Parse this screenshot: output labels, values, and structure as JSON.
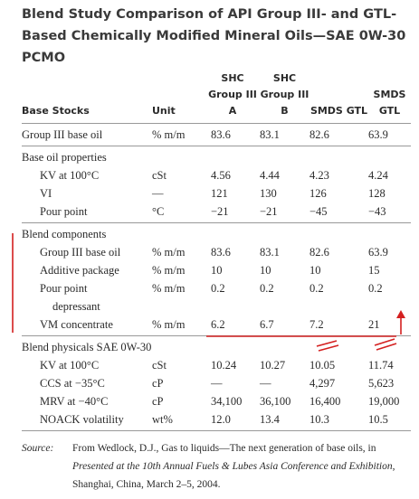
{
  "title": "Blend Study Comparison of API Group III- and GTL-Based Chemically Modified Mineral Oils—SAE 0W-30 PCMO",
  "table": {
    "headers": [
      "Base Stocks",
      "Unit",
      "SHC Group III A",
      "SHC Group III B",
      "SMDS GTL",
      "SMDS GTL"
    ],
    "groups": [
      {
        "label": "Group III base oil",
        "cells": [
          "% m/m",
          "83.6",
          "83.1",
          "82.6",
          "63.9"
        ]
      },
      {
        "label": "Base oil properties",
        "rows": [
          [
            "KV at 100°C",
            "cSt",
            "4.56",
            "4.44",
            "4.23",
            "4.24"
          ],
          [
            "VI",
            "—",
            "121",
            "130",
            "126",
            "128"
          ],
          [
            "Pour point",
            "°C",
            "−21",
            "−21",
            "−45",
            "−43"
          ]
        ]
      },
      {
        "label": "Blend components",
        "rows": [
          [
            "Group III base oil",
            "% m/m",
            "83.6",
            "83.1",
            "82.6",
            "63.9"
          ],
          [
            "Additive package",
            "% m/m",
            "10",
            "10",
            "10",
            "15"
          ],
          [
            "Pour point depressant",
            "% m/m",
            "0.2",
            "0.2",
            "0.2",
            "0.2"
          ],
          [
            "VM concentrate",
            "% m/m",
            "6.2",
            "6.7",
            "7.2",
            "21"
          ]
        ]
      },
      {
        "label": "Blend physicals SAE 0W-30",
        "rows": [
          [
            "KV at 100°C",
            "cSt",
            "10.24",
            "10.27",
            "10.05",
            "11.74"
          ],
          [
            "CCS at −35°C",
            "cP",
            "—",
            "—",
            "4,297",
            "5,623"
          ],
          [
            "MRV at −40°C",
            "cP",
            "34,100",
            "36,100",
            "16,400",
            "19,000"
          ],
          [
            "NOACK volatility",
            "wt%",
            "12.0",
            "13.4",
            "10.3",
            "10.5"
          ]
        ]
      }
    ]
  },
  "source": {
    "label": "Source:",
    "parts": [
      "From Wedlock, D.J., Gas to liquids—The next generation of base oils, in ",
      "Presented at the 10th Annual Fuels & Lubes Asia Conference and Exhibition",
      ", Shanghai, China, March 2–5, 2004."
    ]
  }
}
